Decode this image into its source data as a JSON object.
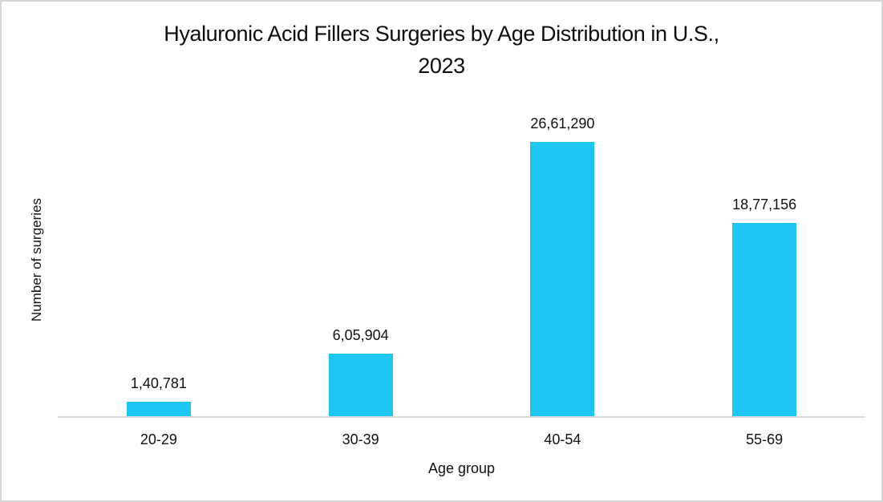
{
  "header": {
    "title_line1": "Hyaluronic Acid Fillers Surgeries by Age Distribution in U.S.,",
    "title_line2": "2023"
  },
  "chart_data": {
    "type": "bar",
    "title": "Hyaluronic Acid Fillers Surgeries by Age Distribution in U.S., 2023",
    "categories": [
      "20-29",
      "30-39",
      "40-54",
      "55-69"
    ],
    "values": [
      140781,
      605904,
      2661290,
      1877156
    ],
    "value_labels": [
      "1,40,781",
      "6,05,904",
      "26,61,290",
      "18,77,156"
    ],
    "xlabel": "Age group",
    "ylabel": "Number of surgeries",
    "bar_color": "#1CC5F4",
    "axis_line_color": "#D9D9D9",
    "text_color": "#111111",
    "background_color": "#FFFFFF",
    "ylim": [
      0,
      2800000
    ],
    "grid": false,
    "legend": false,
    "data_labels_shown": true,
    "y_axis_ticks_shown": false
  }
}
